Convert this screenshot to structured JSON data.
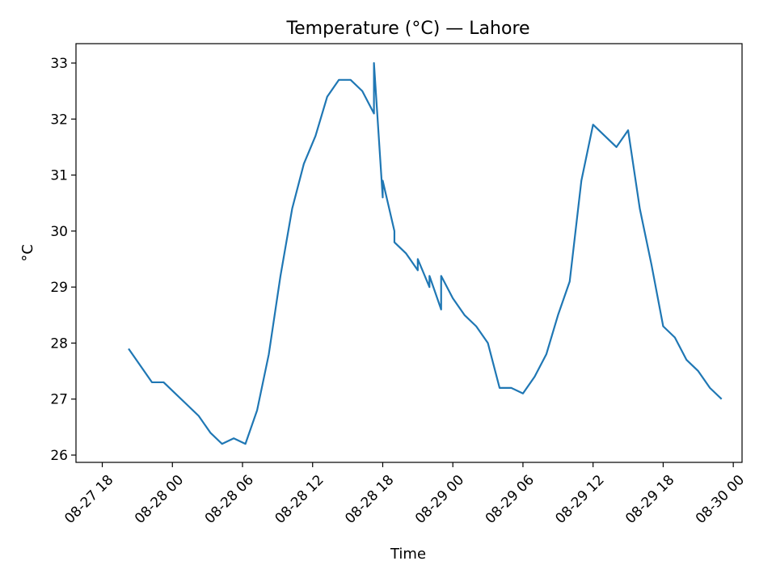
{
  "chart_data": {
    "type": "line",
    "title": "Temperature (°C) — Lahore",
    "xlabel": "Time",
    "ylabel": "°C",
    "xlim": [
      "2023-08-27T15:45",
      "2023-08-30T00:45"
    ],
    "ylim": [
      25.865,
      33.0
    ],
    "grid": false,
    "color": "#1f77b4",
    "x_ticks": [
      {
        "t": "2023-08-27T18:00",
        "label": "08-27 18"
      },
      {
        "t": "2023-08-28T00:00",
        "label": "08-28 00"
      },
      {
        "t": "2023-08-28T06:00",
        "label": "08-28 06"
      },
      {
        "t": "2023-08-28T12:00",
        "label": "08-28 12"
      },
      {
        "t": "2023-08-28T18:00",
        "label": "08-28 18"
      },
      {
        "t": "2023-08-29T00:00",
        "label": "08-29 00"
      },
      {
        "t": "2023-08-29T06:00",
        "label": "08-29 06"
      },
      {
        "t": "2023-08-29T12:00",
        "label": "08-29 12"
      },
      {
        "t": "2023-08-29T18:00",
        "label": "08-29 18"
      },
      {
        "t": "2023-08-30T00:00",
        "label": "08-30 00"
      }
    ],
    "y_ticks": [
      26,
      27,
      28,
      29,
      30,
      31,
      32,
      33
    ],
    "series": [
      {
        "x": [
          "2023-08-27T20:15",
          "2023-08-27T22:15",
          "2023-08-27T23:15",
          "2023-08-28T00:15",
          "2023-08-28T01:15",
          "2023-08-28T02:15",
          "2023-08-28T03:15",
          "2023-08-28T04:15",
          "2023-08-28T05:15",
          "2023-08-28T06:15",
          "2023-08-28T07:15",
          "2023-08-28T08:15",
          "2023-08-28T09:15",
          "2023-08-28T10:15",
          "2023-08-28T11:15",
          "2023-08-28T12:15",
          "2023-08-28T13:15",
          "2023-08-28T14:15",
          "2023-08-28T15:15",
          "2023-08-28T16:15",
          "2023-08-28T17:15",
          "2023-08-28T17:15",
          "2023-08-28T18:00",
          "2023-08-28T18:00",
          "2023-08-28T19:00",
          "2023-08-28T19:00",
          "2023-08-28T20:00",
          "2023-08-28T21:00",
          "2023-08-28T21:00",
          "2023-08-28T22:00",
          "2023-08-28T22:00",
          "2023-08-28T23:00",
          "2023-08-28T23:00",
          "2023-08-29T00:00",
          "2023-08-29T01:00",
          "2023-08-29T02:00",
          "2023-08-29T03:00",
          "2023-08-29T04:00",
          "2023-08-29T05:00",
          "2023-08-29T06:00",
          "2023-08-29T07:00",
          "2023-08-29T08:00",
          "2023-08-29T09:00",
          "2023-08-29T10:00",
          "2023-08-29T11:00",
          "2023-08-29T12:00",
          "2023-08-29T13:00",
          "2023-08-29T14:00",
          "2023-08-29T15:00",
          "2023-08-29T16:00",
          "2023-08-29T17:00",
          "2023-08-29T18:00",
          "2023-08-29T19:00",
          "2023-08-29T20:00",
          "2023-08-29T21:00",
          "2023-08-29T22:00",
          "2023-08-29T23:00"
        ],
        "y": [
          27.9,
          27.3,
          27.3,
          27.1,
          26.9,
          26.7,
          26.4,
          26.2,
          26.3,
          26.2,
          26.8,
          27.8,
          29.2,
          30.4,
          31.2,
          31.7,
          32.4,
          32.7,
          32.7,
          32.5,
          32.1,
          33.0,
          30.6,
          30.9,
          30.0,
          29.8,
          29.6,
          29.3,
          29.5,
          29.0,
          29.2,
          28.6,
          29.2,
          28.8,
          28.5,
          28.3,
          28.0,
          27.2,
          27.2,
          27.1,
          27.4,
          27.8,
          28.5,
          29.1,
          30.9,
          31.9,
          31.7,
          31.5,
          31.8,
          30.4,
          29.4,
          28.3,
          28.1,
          27.7,
          27.5,
          27.2,
          27.0
        ]
      }
    ]
  }
}
